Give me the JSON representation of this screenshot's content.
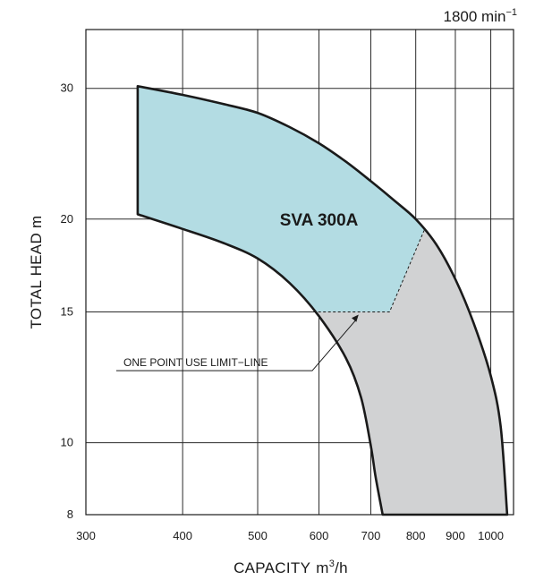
{
  "chart_data": {
    "type": "area",
    "speed_label": "1800 min",
    "speed_exponent": "−1",
    "model": "SVA 300A",
    "xlabel": "CAPACITY",
    "xunit_base": "m",
    "xunit_sup": "3",
    "xunit_rest": "/h",
    "ylabel": "TOTAL HEAD m",
    "x_scale": "log",
    "y_scale": "log",
    "xlim": [
      300,
      1070
    ],
    "ylim": [
      8,
      36
    ],
    "x_ticks": [
      300,
      400,
      500,
      600,
      700,
      800,
      900,
      1000
    ],
    "x_tick_labels": [
      "300",
      "400",
      "500",
      "600",
      "700",
      "800",
      "900",
      "1000"
    ],
    "y_ticks": [
      8,
      10,
      15,
      20,
      30
    ],
    "y_tick_labels": [
      "8",
      "10",
      "15",
      "20",
      "30"
    ],
    "x_gridlines": [
      300,
      400,
      500,
      600,
      700,
      800,
      900,
      1000
    ],
    "y_gridlines": [
      8,
      10,
      15,
      20,
      30
    ],
    "grid": true,
    "colors": {
      "blue_region": "#b3dce3",
      "gray_region": "#d1d2d3",
      "outline": "#1a1a1a",
      "grid": "#2a2a2a"
    },
    "envelope": {
      "left_edge_x": 350,
      "upper_curve": [
        [
          350,
          30.2
        ],
        [
          400,
          29.4
        ],
        [
          450,
          28.6
        ],
        [
          500,
          27.8
        ],
        [
          550,
          26.6
        ],
        [
          600,
          25.3
        ],
        [
          650,
          23.9
        ],
        [
          700,
          22.5
        ],
        [
          750,
          21.2
        ],
        [
          800,
          20.0
        ],
        [
          850,
          18.5
        ],
        [
          900,
          16.6
        ],
        [
          950,
          14.5
        ],
        [
          1000,
          12.3
        ],
        [
          1030,
          10.5
        ],
        [
          1050,
          8
        ]
      ],
      "lower_curve": [
        [
          350,
          20.3
        ],
        [
          400,
          19.4
        ],
        [
          450,
          18.6
        ],
        [
          500,
          17.7
        ],
        [
          550,
          16.4
        ],
        [
          600,
          14.8
        ],
        [
          650,
          13.0
        ],
        [
          680,
          11.5
        ],
        [
          700,
          9.9
        ],
        [
          710,
          9.0
        ],
        [
          725,
          8
        ]
      ],
      "use_limit_line": [
        [
          590,
          15
        ],
        [
          740,
          15
        ],
        [
          820,
          19.3
        ]
      ]
    },
    "annotations": {
      "limit_line_label": "ONE POINT USE LIMIT−LINE"
    }
  }
}
